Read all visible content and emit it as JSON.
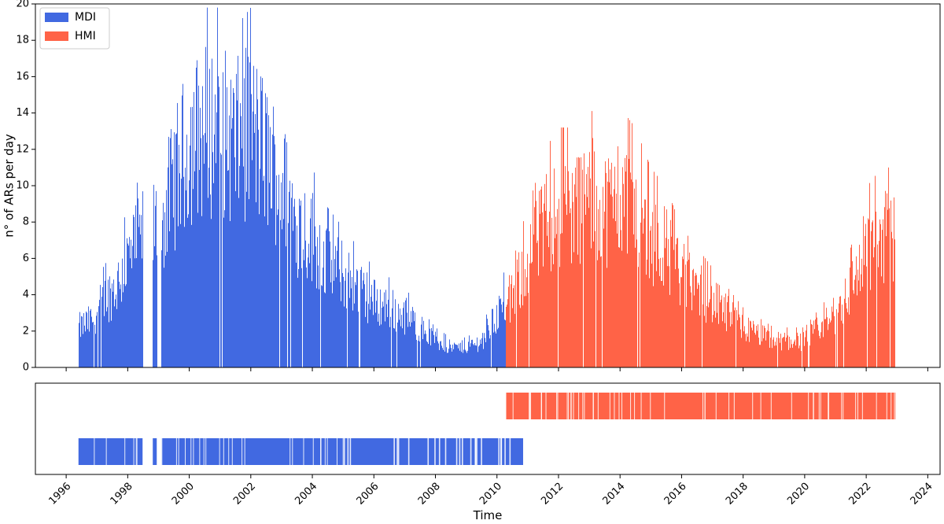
{
  "chart_data": [
    {
      "type": "bar",
      "xlabel": "",
      "ylabel": "n° of ARs per day",
      "xlim": [
        1995.0,
        2024.4
      ],
      "ylim": [
        0,
        20
      ],
      "yticks": [
        0,
        2,
        4,
        6,
        8,
        10,
        12,
        14,
        16,
        18,
        20
      ],
      "legend": {
        "position": "top-left",
        "entries": [
          "MDI",
          "HMI"
        ]
      },
      "series": [
        {
          "name": "MDI",
          "color": "#4169e1",
          "range": [
            1996.4,
            2010.3
          ],
          "gaps": [
            [
              1998.5,
              1998.8
            ],
            [
              1998.95,
              1999.1
            ]
          ],
          "envelope": {
            "x": [
              1996.4,
              1996.8,
              1997.2,
              1997.6,
              1998.0,
              1998.5,
              1999.1,
              1999.5,
              2000.0,
              2000.5,
              2001.0,
              2001.5,
              2002.0,
              2002.5,
              2003.0,
              2003.5,
              2004.0,
              2004.5,
              2005.0,
              2005.5,
              2006.0,
              2006.5,
              2007.0,
              2007.5,
              2008.0,
              2008.5,
              2009.0,
              2009.5,
              2010.0,
              2010.3
            ],
            "y": [
              3,
              3.5,
              5,
              6,
              8,
              10,
              11,
              14,
              17,
              18,
              18,
              17,
              18,
              16,
              14,
              11,
              10,
              8,
              7,
              6,
              5,
              4.5,
              4,
              3,
              2,
              1.5,
              1.5,
              2,
              4,
              5
            ]
          }
        },
        {
          "name": "HMI",
          "color": "#ff6347",
          "range": [
            2010.3,
            2022.95
          ],
          "envelope": {
            "x": [
              2010.3,
              2010.8,
              2011.2,
              2011.6,
              2012.0,
              2012.5,
              2013.0,
              2013.5,
              2014.0,
              2014.5,
              2015.0,
              2015.5,
              2016.0,
              2016.5,
              2017.0,
              2017.5,
              2018.0,
              2018.5,
              2019.0,
              2019.5,
              2020.0,
              2020.5,
              2021.0,
              2021.5,
              2022.0,
              2022.5,
              2022.95
            ],
            "y": [
              4,
              7,
              9,
              11,
              12,
              12,
              13,
              12,
              13,
              12,
              10,
              9,
              7,
              6,
              5,
              4,
              3,
              2.5,
              2,
              2,
              2,
              3,
              4,
              6,
              9,
              10,
              10
            ]
          }
        }
      ]
    },
    {
      "type": "bar",
      "xlabel": "Time",
      "ylabel": "",
      "xlim": [
        1995.0,
        2024.4
      ],
      "xticks": [
        "1996",
        "1998",
        "2000",
        "2002",
        "2004",
        "2006",
        "2008",
        "2010",
        "2012",
        "2014",
        "2016",
        "2018",
        "2020",
        "2022",
        "2024"
      ],
      "series": [
        {
          "name": "HMI",
          "color": "#ff6347",
          "range": [
            2010.3,
            2022.95
          ],
          "row": "upper"
        },
        {
          "name": "MDI",
          "color": "#4169e1",
          "range": [
            1996.4,
            2010.85
          ],
          "row": "lower",
          "gaps": [
            [
              1998.5,
              1998.8
            ],
            [
              1998.95,
              1999.1
            ]
          ]
        }
      ]
    }
  ]
}
